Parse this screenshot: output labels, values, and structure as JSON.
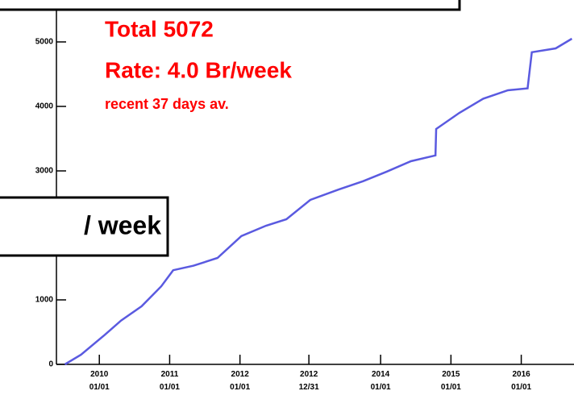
{
  "chart_data": {
    "type": "line",
    "annotations": [
      "Total  5072",
      "Rate:  4.0 Br/week",
      "recent 37 days av."
    ],
    "boxed_label": "/  week",
    "series": [
      {
        "color": "#5a5ae0",
        "x": [
          2009.51,
          2009.74,
          2010.08,
          2010.31,
          2010.6,
          2010.88,
          2011.05,
          2011.34,
          2011.68,
          2012.02,
          2012.37,
          2012.66,
          2013.0,
          2013.4,
          2013.75,
          2014.09,
          2014.43,
          2014.78,
          2014.79,
          2015.12,
          2015.46,
          2015.81,
          2016.09,
          2016.15,
          2016.49,
          2016.72
        ],
        "values": [
          0,
          150,
          460,
          680,
          900,
          1210,
          1460,
          1530,
          1650,
          1990,
          2150,
          2250,
          2550,
          2710,
          2840,
          2990,
          3150,
          3240,
          3650,
          3900,
          4120,
          4250,
          4280,
          4840,
          4900,
          5050
        ]
      }
    ],
    "xlim": [
      2009.39,
      2016.75
    ],
    "xticks": [
      {
        "value": 2010.0,
        "label": "2010 01/01"
      },
      {
        "value": 2011.0,
        "label": "2011 01/01"
      },
      {
        "value": 2012.0,
        "label": "2012 01/01"
      },
      {
        "value": 2012.98,
        "label": "2012 12/31"
      },
      {
        "value": 2014.0,
        "label": "2014 01/01"
      },
      {
        "value": 2015.0,
        "label": "2015 01/01"
      },
      {
        "value": 2016.0,
        "label": "2016 01/01"
      }
    ],
    "ylim": [
      0,
      5650
    ],
    "yticks": [
      0,
      1000,
      3000,
      4000,
      5000
    ]
  }
}
